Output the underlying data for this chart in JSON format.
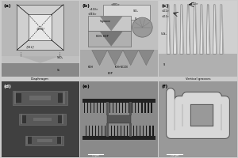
{
  "bg_color": "#cccccc",
  "label_fontsize": 4.5,
  "panel_a_bg": "#c0c0c0",
  "panel_b_bg": "#b8b8b8",
  "panel_c_bg": "#d0d0d0",
  "panel_d_bg": "#4a4a4a",
  "panel_e_bg": "#8a8a8a",
  "panel_f_bg": "#9a9a9a",
  "white": "#ffffff",
  "black": "#000000",
  "dark_gray": "#333333",
  "med_gray": "#888888",
  "light_gray": "#cccccc"
}
